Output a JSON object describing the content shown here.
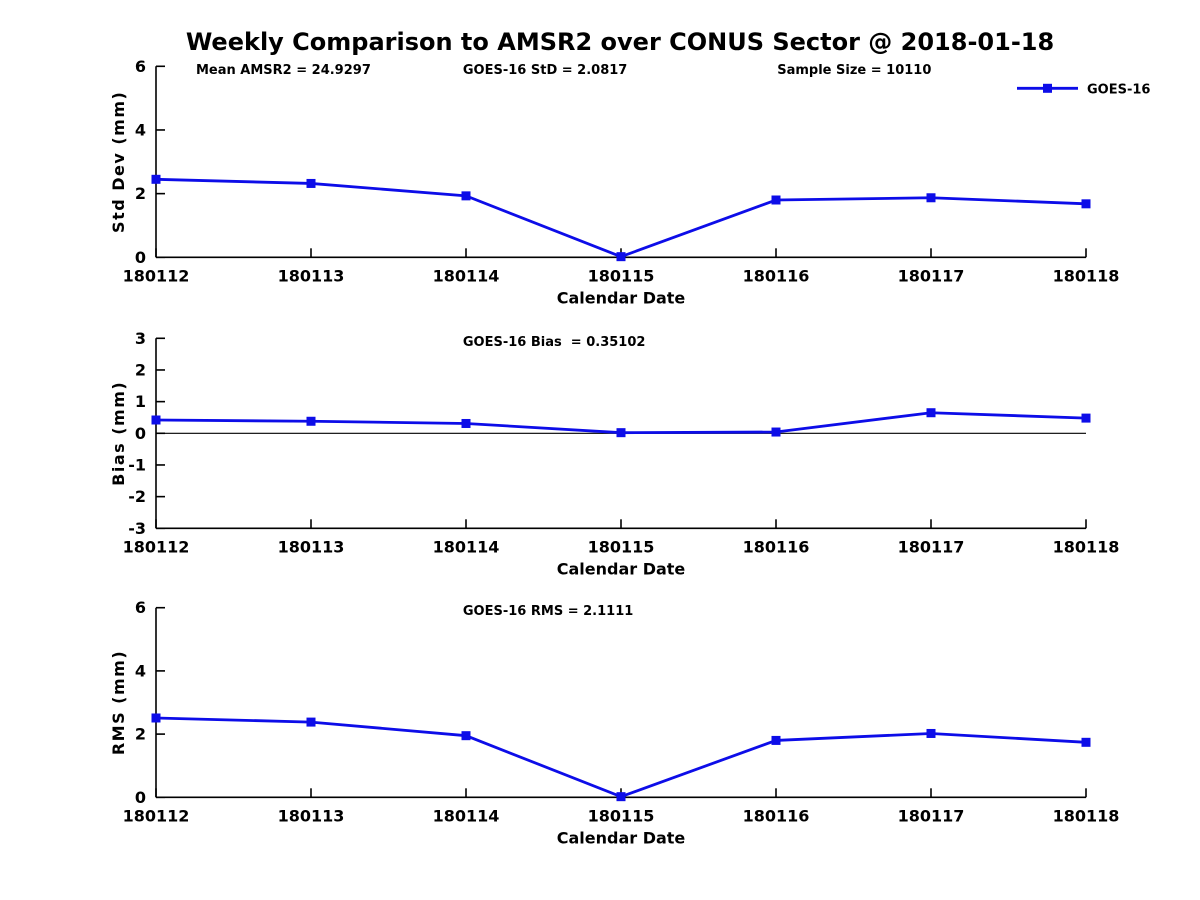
{
  "title": "Weekly Comparison to AMSR2 over CONUS Sector @ 2018-01-18",
  "colors": {
    "series": "#0d0de8",
    "axis": "#000000",
    "background": "#ffffff"
  },
  "chart_data": [
    {
      "type": "line",
      "id": "std-dev",
      "annotations": [
        "Mean AMSR2 = 24.9297",
        "GOES-16 StD = 2.0817",
        "Sample Size = 10110"
      ],
      "categories": [
        "180112",
        "180113",
        "180114",
        "180115",
        "180116",
        "180117",
        "180118"
      ],
      "series": [
        {
          "name": "GOES-16",
          "values": [
            2.45,
            2.32,
            1.93,
            0.02,
            1.8,
            1.87,
            1.68
          ]
        }
      ],
      "xlabel": "Calendar Date",
      "ylabel": "Std Dev (mm)",
      "ylim": [
        0,
        6
      ],
      "yticks": [
        0,
        2,
        4,
        6
      ],
      "grid": false,
      "legend": {
        "labels": [
          "GOES-16"
        ],
        "position": "upper-right"
      }
    },
    {
      "type": "line",
      "id": "bias",
      "annotations": [
        "GOES-16 Bias  = 0.35102"
      ],
      "categories": [
        "180112",
        "180113",
        "180114",
        "180115",
        "180116",
        "180117",
        "180118"
      ],
      "series": [
        {
          "name": "GOES-16",
          "values": [
            0.42,
            0.38,
            0.31,
            0.02,
            0.04,
            0.65,
            0.48
          ]
        }
      ],
      "xlabel": "Calendar Date",
      "ylabel": "Bias (mm)",
      "ylim": [
        -3,
        3
      ],
      "yticks": [
        -3,
        -2,
        -1,
        0,
        1,
        2,
        3
      ],
      "zero_line": true,
      "grid": false
    },
    {
      "type": "line",
      "id": "rms",
      "annotations": [
        "GOES-16 RMS = 2.1111"
      ],
      "categories": [
        "180112",
        "180113",
        "180114",
        "180115",
        "180116",
        "180117",
        "180118"
      ],
      "series": [
        {
          "name": "GOES-16",
          "values": [
            2.51,
            2.38,
            1.95,
            0.02,
            1.8,
            2.02,
            1.74
          ]
        }
      ],
      "xlabel": "Calendar Date",
      "ylabel": "RMS (mm)",
      "ylim": [
        0,
        6
      ],
      "yticks": [
        0,
        2,
        4,
        6
      ],
      "grid": false
    }
  ]
}
